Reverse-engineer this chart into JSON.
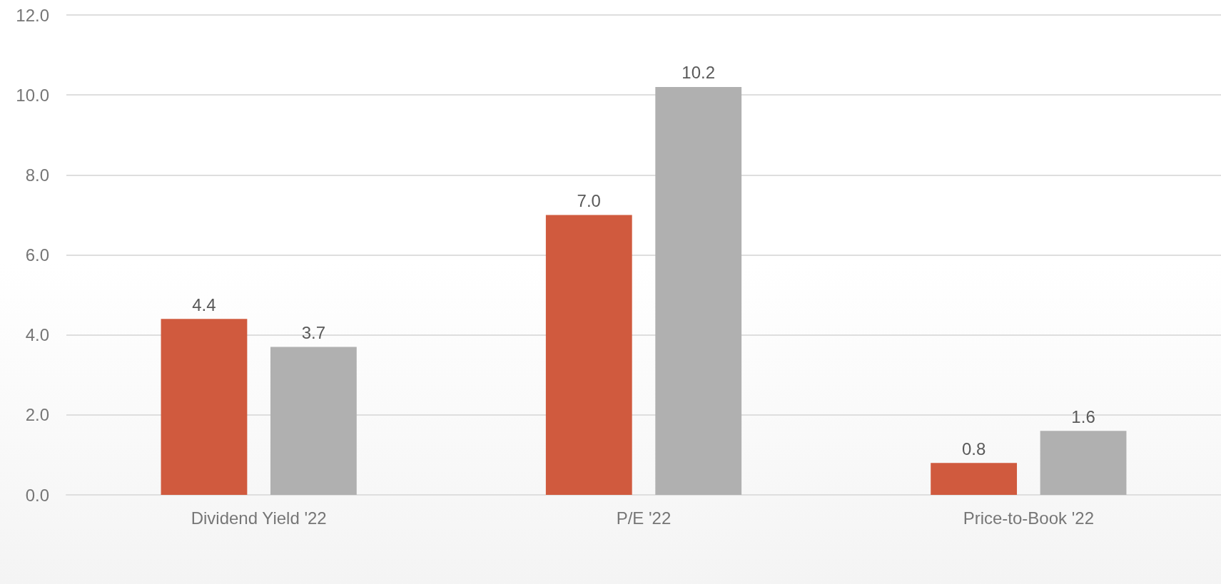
{
  "chart_data": {
    "type": "bar",
    "categories": [
      "Dividend Yield '22",
      "P/E '22",
      "Price-to-Book '22"
    ],
    "series": [
      {
        "color": "#d05a3e",
        "values": [
          4.4,
          7.0,
          0.8
        ],
        "value_labels": [
          "4.4",
          "7.0",
          "0.8"
        ]
      },
      {
        "color": "#b0b0b0",
        "values": [
          3.7,
          10.2,
          1.6
        ],
        "value_labels": [
          "3.7",
          "10.2",
          "1.6"
        ]
      }
    ],
    "ylim": [
      0,
      12
    ],
    "yticks": [
      {
        "value": 0,
        "label": "0.0"
      },
      {
        "value": 2,
        "label": "2.0"
      },
      {
        "value": 4,
        "label": "4.0"
      },
      {
        "value": 6,
        "label": "6.0"
      },
      {
        "value": 8,
        "label": "8.0"
      },
      {
        "value": 10,
        "label": "10.0"
      },
      {
        "value": 12,
        "label": "12.0"
      }
    ],
    "grid": "y"
  }
}
